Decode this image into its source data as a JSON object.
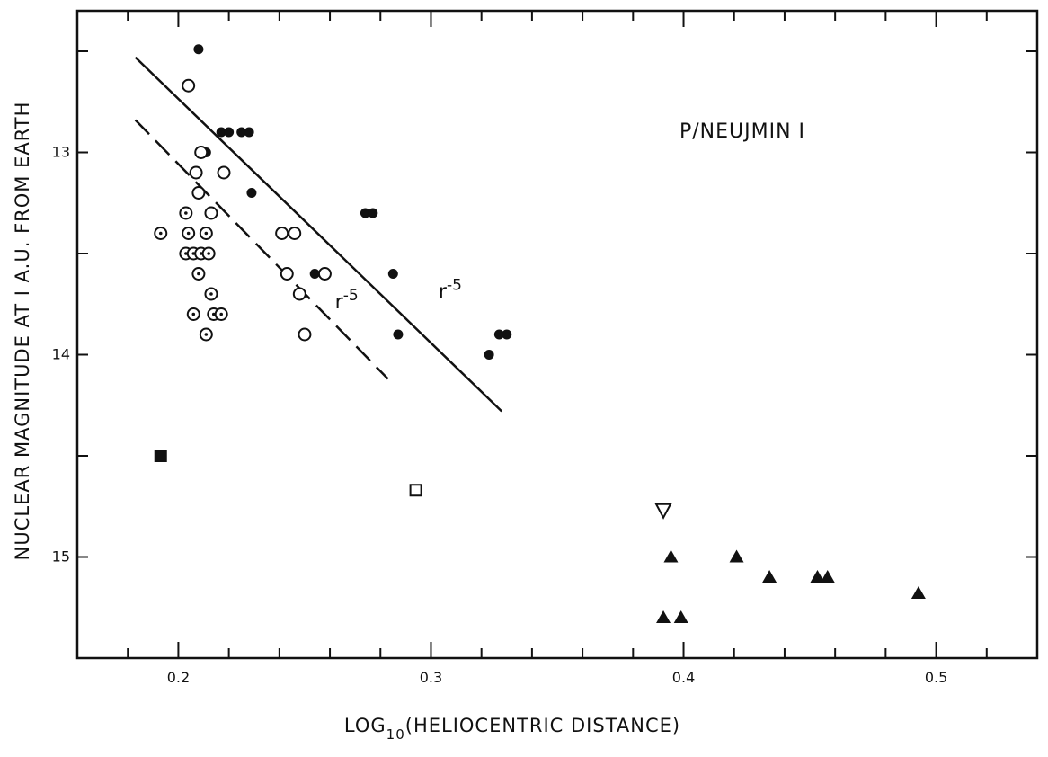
{
  "chart_data": {
    "type": "scatter",
    "title": "P/NEUJMIN I",
    "xlabel": "LOG",
    "xlabel_sub": "10",
    "xlabel_rest": "(HELIOCENTRIC DISTANCE)",
    "ylabel": "NUCLEAR MAGNITUDE AT I A.U. FROM EARTH",
    "xlim": [
      0.16,
      0.54
    ],
    "ylim": [
      12.3,
      15.5
    ],
    "y_inverted": true,
    "grid": false,
    "x_ticks": [
      0.2,
      0.3,
      0.4,
      0.5
    ],
    "x_tick_labels": [
      "0.2",
      "0.3",
      "0.4",
      "0.5"
    ],
    "y_ticks": [
      13,
      14,
      15
    ],
    "y_tick_labels": [
      "13",
      "14",
      "15"
    ],
    "series": [
      {
        "marker": "filled-circle",
        "points": [
          [
            0.208,
            12.49
          ],
          [
            0.211,
            13.0
          ],
          [
            0.217,
            12.9
          ],
          [
            0.22,
            12.9
          ],
          [
            0.225,
            12.9
          ],
          [
            0.228,
            12.9
          ],
          [
            0.229,
            13.2
          ],
          [
            0.254,
            13.6
          ],
          [
            0.274,
            13.3
          ],
          [
            0.277,
            13.3
          ],
          [
            0.285,
            13.6
          ],
          [
            0.287,
            13.9
          ],
          [
            0.323,
            14.0
          ],
          [
            0.327,
            13.9
          ],
          [
            0.33,
            13.9
          ]
        ]
      },
      {
        "marker": "open-circle",
        "points": [
          [
            0.204,
            12.67
          ],
          [
            0.207,
            13.1
          ],
          [
            0.208,
            13.2
          ],
          [
            0.209,
            13.0
          ],
          [
            0.213,
            13.3
          ],
          [
            0.218,
            13.1
          ],
          [
            0.241,
            13.4
          ],
          [
            0.243,
            13.6
          ],
          [
            0.246,
            13.4
          ],
          [
            0.248,
            13.7
          ],
          [
            0.25,
            13.9
          ],
          [
            0.258,
            13.6
          ]
        ]
      },
      {
        "marker": "dotted-circle",
        "points": [
          [
            0.193,
            13.4
          ],
          [
            0.203,
            13.3
          ],
          [
            0.204,
            13.4
          ],
          [
            0.203,
            13.5
          ],
          [
            0.206,
            13.5
          ],
          [
            0.208,
            13.6
          ],
          [
            0.209,
            13.5
          ],
          [
            0.212,
            13.5
          ],
          [
            0.211,
            13.4
          ],
          [
            0.213,
            13.7
          ],
          [
            0.206,
            13.8
          ],
          [
            0.214,
            13.8
          ],
          [
            0.217,
            13.8
          ],
          [
            0.211,
            13.9
          ]
        ]
      },
      {
        "marker": "filled-square",
        "points": [
          [
            0.193,
            14.5
          ]
        ]
      },
      {
        "marker": "open-square",
        "points": [
          [
            0.294,
            14.67
          ]
        ]
      },
      {
        "marker": "open-triangle-down",
        "points": [
          [
            0.392,
            14.77
          ]
        ]
      },
      {
        "marker": "filled-triangle",
        "points": [
          [
            0.395,
            15.0
          ],
          [
            0.421,
            15.0
          ],
          [
            0.434,
            15.1
          ],
          [
            0.453,
            15.1
          ],
          [
            0.457,
            15.1
          ],
          [
            0.493,
            15.18
          ],
          [
            0.392,
            15.3
          ],
          [
            0.399,
            15.3
          ]
        ]
      }
    ],
    "lines": [
      {
        "style": "solid",
        "label": "r",
        "label_exp": "-5",
        "from": [
          0.183,
          12.53
        ],
        "to": [
          0.328,
          14.28
        ],
        "label_at": [
          0.303,
          13.72
        ]
      },
      {
        "style": "dashed",
        "label": "r",
        "label_exp": "-5",
        "from": [
          0.183,
          12.84
        ],
        "to": [
          0.283,
          14.12
        ],
        "label_at": [
          0.262,
          13.77
        ]
      }
    ]
  }
}
